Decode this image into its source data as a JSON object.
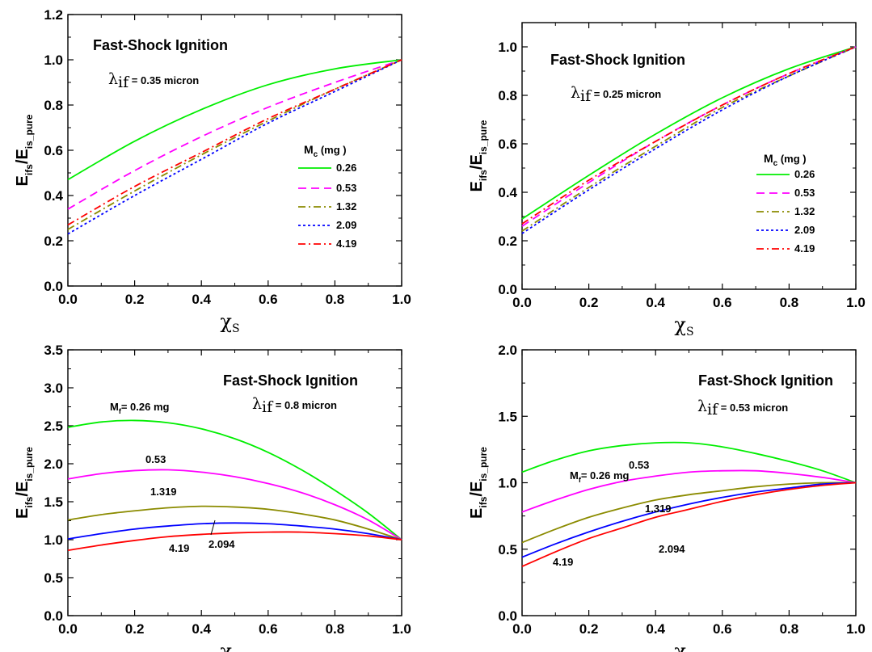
{
  "chart_data": [
    {
      "type": "line",
      "title": "Fast-Shock Ignition",
      "lambda_symbol": "λ",
      "lambda_sub": "if",
      "lambda_value": "= 0.35 micron",
      "xlabel_main": "χ",
      "xlabel_sub": "S",
      "ylabel_parts": [
        "E",
        "ifs",
        "/E",
        "is_pure"
      ],
      "xlim": [
        0.0,
        1.0
      ],
      "ylim": [
        0.0,
        1.2
      ],
      "xticks": [
        0.0,
        0.2,
        0.4,
        0.6,
        0.8,
        1.0
      ],
      "yticks": [
        0.0,
        0.2,
        0.4,
        0.6,
        0.8,
        1.0,
        1.2
      ],
      "xtick_labels": [
        "0.0",
        "0.2",
        "0.4",
        "0.6",
        "0.8",
        "1.0"
      ],
      "ytick_labels": [
        "0.0",
        "0.2",
        "0.4",
        "0.6",
        "0.8",
        "1.0",
        "1.2"
      ],
      "legend_title": "M",
      "legend_title_sub": "c",
      "legend_unit": "(mg )",
      "legend_position": "right",
      "series": [
        {
          "name": "0.26",
          "color": "#00ee00",
          "dash": "solid",
          "x": [
            0.0,
            0.2,
            0.4,
            0.6,
            0.8,
            1.0
          ],
          "y": [
            0.47,
            0.64,
            0.78,
            0.89,
            0.96,
            1.0
          ]
        },
        {
          "name": "0.53",
          "color": "#ff00ff",
          "dash": "dash",
          "x": [
            0.0,
            0.2,
            0.4,
            0.6,
            0.8,
            1.0
          ],
          "y": [
            0.34,
            0.51,
            0.66,
            0.79,
            0.9,
            1.0
          ]
        },
        {
          "name": "1.32",
          "color": "#8b8b00",
          "dash": "dashdot",
          "x": [
            0.0,
            0.2,
            0.4,
            0.6,
            0.8,
            1.0
          ],
          "y": [
            0.25,
            0.42,
            0.58,
            0.73,
            0.87,
            1.0
          ]
        },
        {
          "name": "2.09",
          "color": "#0000ff",
          "dash": "dot",
          "x": [
            0.0,
            0.2,
            0.4,
            0.6,
            0.8,
            1.0
          ],
          "y": [
            0.23,
            0.4,
            0.56,
            0.72,
            0.86,
            1.0
          ]
        },
        {
          "name": "4.19",
          "color": "#ff0000",
          "dash": "dashdot",
          "x": [
            0.0,
            0.2,
            0.4,
            0.6,
            0.8,
            1.0
          ],
          "y": [
            0.27,
            0.44,
            0.59,
            0.74,
            0.87,
            1.0
          ]
        }
      ]
    },
    {
      "type": "line",
      "title": "Fast-Shock Ignition",
      "lambda_symbol": "λ",
      "lambda_sub": "if",
      "lambda_value": "= 0.25 micron",
      "xlabel_main": "χ",
      "xlabel_sub": "S",
      "ylabel_parts": [
        "E",
        "ifs",
        "/E",
        "is_pure"
      ],
      "xlim": [
        0.0,
        1.0
      ],
      "ylim": [
        0.0,
        1.1
      ],
      "xticks": [
        0.0,
        0.2,
        0.4,
        0.6,
        0.8,
        1.0
      ],
      "yticks": [
        0.0,
        0.2,
        0.4,
        0.6,
        0.8,
        1.0
      ],
      "xtick_labels": [
        "0.0",
        "0.2",
        "0.4",
        "0.6",
        "0.8",
        "1.0"
      ],
      "ytick_labels": [
        "0.0",
        "0.2",
        "0.4",
        "0.6",
        "0.8",
        "1.0"
      ],
      "legend_title": "M",
      "legend_title_sub": "c",
      "legend_unit": "(mg )",
      "legend_position": "right",
      "series": [
        {
          "name": "0.26",
          "color": "#00ee00",
          "dash": "solid",
          "x": [
            0.0,
            0.2,
            0.4,
            0.6,
            0.8,
            1.0
          ],
          "y": [
            0.29,
            0.47,
            0.64,
            0.79,
            0.91,
            1.0
          ]
        },
        {
          "name": "0.53",
          "color": "#ff00ff",
          "dash": "dash",
          "x": [
            0.0,
            0.2,
            0.4,
            0.6,
            0.8,
            1.0
          ],
          "y": [
            0.26,
            0.44,
            0.61,
            0.76,
            0.89,
            1.0
          ]
        },
        {
          "name": "1.32",
          "color": "#8b8b00",
          "dash": "dashdot",
          "x": [
            0.0,
            0.2,
            0.4,
            0.6,
            0.8,
            1.0
          ],
          "y": [
            0.24,
            0.42,
            0.59,
            0.75,
            0.88,
            1.0
          ]
        },
        {
          "name": "2.09",
          "color": "#0000ff",
          "dash": "dot",
          "x": [
            0.0,
            0.2,
            0.4,
            0.6,
            0.8,
            1.0
          ],
          "y": [
            0.23,
            0.41,
            0.58,
            0.74,
            0.88,
            1.0
          ]
        },
        {
          "name": "4.19",
          "color": "#ff0000",
          "dash": "dashdot",
          "x": [
            0.0,
            0.2,
            0.4,
            0.6,
            0.8,
            1.0
          ],
          "y": [
            0.27,
            0.45,
            0.61,
            0.76,
            0.89,
            1.0
          ]
        }
      ]
    },
    {
      "type": "line",
      "title": "Fast-Shock Ignition",
      "lambda_symbol": "λ",
      "lambda_sub": "if",
      "lambda_value": "= 0.8 micron",
      "xlabel_main": "χ",
      "xlabel_sub": "S",
      "ylabel_parts": [
        "E",
        "ifs",
        "/E",
        "is_pure"
      ],
      "xlim": [
        0.0,
        1.0
      ],
      "ylim": [
        0.0,
        3.5
      ],
      "xticks": [
        0.0,
        0.2,
        0.4,
        0.6,
        0.8,
        1.0
      ],
      "yticks": [
        0.0,
        0.5,
        1.0,
        1.5,
        2.0,
        2.5,
        3.0,
        3.5
      ],
      "xtick_labels": [
        "0.0",
        "0.2",
        "0.4",
        "0.6",
        "0.8",
        "1.0"
      ],
      "ytick_labels": [
        "0.0",
        "0.5",
        "1.0",
        "1.5",
        "2.0",
        "2.5",
        "3.0",
        "3.5"
      ],
      "mass_label_prefix": "M",
      "mass_label_sub": "f",
      "mass_label_rest": "= 0.26 mg",
      "series": [
        {
          "name": "0.26",
          "label": "",
          "color": "#00ee00",
          "dash": "solid",
          "x": [
            0.0,
            0.1,
            0.2,
            0.3,
            0.4,
            0.5,
            0.6,
            0.7,
            0.8,
            0.9,
            1.0
          ],
          "y": [
            2.48,
            2.55,
            2.57,
            2.54,
            2.46,
            2.33,
            2.15,
            1.92,
            1.65,
            1.35,
            1.0
          ]
        },
        {
          "name": "0.53",
          "label": "0.53",
          "color": "#ff00ff",
          "dash": "solid",
          "x": [
            0.0,
            0.1,
            0.2,
            0.3,
            0.4,
            0.5,
            0.6,
            0.7,
            0.8,
            0.9,
            1.0
          ],
          "y": [
            1.8,
            1.87,
            1.91,
            1.92,
            1.89,
            1.83,
            1.74,
            1.62,
            1.46,
            1.26,
            1.0
          ]
        },
        {
          "name": "1.319",
          "label": "1.319",
          "color": "#8b8b00",
          "dash": "solid",
          "x": [
            0.0,
            0.1,
            0.2,
            0.3,
            0.4,
            0.5,
            0.6,
            0.7,
            0.8,
            0.9,
            1.0
          ],
          "y": [
            1.26,
            1.33,
            1.38,
            1.42,
            1.44,
            1.43,
            1.4,
            1.34,
            1.26,
            1.14,
            1.0
          ]
        },
        {
          "name": "2.094",
          "label": "2.094",
          "color": "#0000ff",
          "dash": "solid",
          "x": [
            0.0,
            0.1,
            0.2,
            0.3,
            0.4,
            0.5,
            0.6,
            0.7,
            0.8,
            0.9,
            1.0
          ],
          "y": [
            1.01,
            1.08,
            1.14,
            1.18,
            1.21,
            1.22,
            1.21,
            1.18,
            1.14,
            1.08,
            1.0
          ]
        },
        {
          "name": "4.19",
          "label": "4.19",
          "color": "#ff0000",
          "dash": "solid",
          "x": [
            0.0,
            0.1,
            0.2,
            0.3,
            0.4,
            0.5,
            0.6,
            0.7,
            0.8,
            0.9,
            1.0
          ],
          "y": [
            0.86,
            0.93,
            0.99,
            1.04,
            1.07,
            1.09,
            1.1,
            1.1,
            1.08,
            1.05,
            1.0
          ]
        }
      ]
    },
    {
      "type": "line",
      "title": "Fast-Shock Ignition",
      "lambda_symbol": "λ",
      "lambda_sub": "if",
      "lambda_value": "= 0.53 micron",
      "xlabel_main": "χ",
      "xlabel_sub": "S",
      "ylabel_parts": [
        "E",
        "ifs",
        "/E",
        "is_pure"
      ],
      "xlim": [
        0.0,
        1.0
      ],
      "ylim": [
        0.0,
        2.0
      ],
      "xticks": [
        0.0,
        0.2,
        0.4,
        0.6,
        0.8,
        1.0
      ],
      "yticks": [
        0.0,
        0.5,
        1.0,
        1.5,
        2.0
      ],
      "xtick_labels": [
        "0.0",
        "0.2",
        "0.4",
        "0.6",
        "0.8",
        "1.0"
      ],
      "ytick_labels": [
        "0.0",
        "0.5",
        "1.0",
        "1.5",
        "2.0"
      ],
      "mass_label_prefix": "M",
      "mass_label_sub": "f",
      "mass_label_rest": "= 0.26 mg",
      "series": [
        {
          "name": "0.26",
          "label": "",
          "color": "#00ee00",
          "dash": "solid",
          "x": [
            0.0,
            0.1,
            0.2,
            0.3,
            0.4,
            0.5,
            0.6,
            0.7,
            0.8,
            0.9,
            1.0
          ],
          "y": [
            1.08,
            1.17,
            1.24,
            1.28,
            1.3,
            1.3,
            1.27,
            1.22,
            1.16,
            1.09,
            1.0
          ]
        },
        {
          "name": "0.53",
          "label": "0.53",
          "color": "#ff00ff",
          "dash": "solid",
          "x": [
            0.0,
            0.1,
            0.2,
            0.3,
            0.4,
            0.5,
            0.6,
            0.7,
            0.8,
            0.9,
            1.0
          ],
          "y": [
            0.78,
            0.87,
            0.95,
            1.01,
            1.05,
            1.08,
            1.09,
            1.09,
            1.07,
            1.04,
            1.0
          ]
        },
        {
          "name": "1.319",
          "label": "1.319",
          "color": "#8b8b00",
          "dash": "solid",
          "x": [
            0.0,
            0.1,
            0.2,
            0.3,
            0.4,
            0.5,
            0.6,
            0.7,
            0.8,
            0.9,
            1.0
          ],
          "y": [
            0.55,
            0.65,
            0.74,
            0.81,
            0.87,
            0.91,
            0.94,
            0.97,
            0.99,
            1.0,
            1.0
          ]
        },
        {
          "name": "2.094",
          "label": "2.094",
          "color": "#0000ff",
          "dash": "solid",
          "x": [
            0.0,
            0.1,
            0.2,
            0.3,
            0.4,
            0.5,
            0.6,
            0.7,
            0.8,
            0.9,
            1.0
          ],
          "y": [
            0.44,
            0.54,
            0.63,
            0.71,
            0.78,
            0.84,
            0.89,
            0.93,
            0.96,
            0.99,
            1.0
          ]
        },
        {
          "name": "4.19",
          "label": "4.19",
          "color": "#ff0000",
          "dash": "solid",
          "x": [
            0.0,
            0.1,
            0.2,
            0.3,
            0.4,
            0.5,
            0.6,
            0.7,
            0.8,
            0.9,
            1.0
          ],
          "y": [
            0.37,
            0.48,
            0.58,
            0.66,
            0.74,
            0.8,
            0.86,
            0.91,
            0.95,
            0.98,
            1.0
          ]
        }
      ]
    }
  ]
}
